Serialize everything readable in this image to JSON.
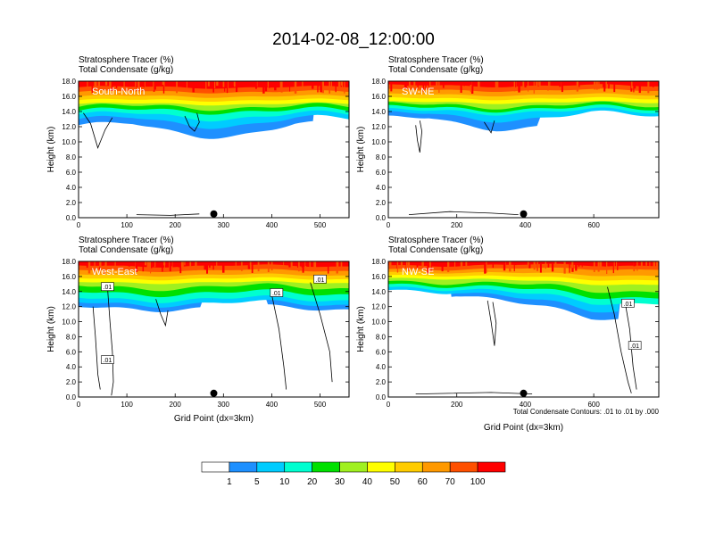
{
  "figure": {
    "title": "2014-02-08_12:00:00",
    "contour_note": "Total Condensate Contours: .01 to .01 by .000",
    "contour_label": ".01"
  },
  "colorbar": {
    "colors": [
      "#ffffff",
      "#1e90ff",
      "#00ccff",
      "#00ffd0",
      "#00e000",
      "#a0f020",
      "#ffff00",
      "#ffcc00",
      "#ff9900",
      "#ff5000",
      "#ff0000"
    ],
    "labels": [
      "1",
      "5",
      "10",
      "20",
      "30",
      "40",
      "50",
      "60",
      "70",
      "100"
    ]
  },
  "chart_data": [
    {
      "type": "contour",
      "panel_label": "South-North",
      "header_lines": [
        "Stratosphere Tracer   (%)",
        "Total Condensate   (g/kg)"
      ],
      "xlabel": "",
      "ylabel": "Height (km)",
      "xlim": [
        0,
        560
      ],
      "ylim": [
        0,
        18
      ],
      "x_ticks": [
        "0",
        "100",
        "200",
        "300",
        "400",
        "500"
      ],
      "y_ticks": [
        "0.0",
        "2.0",
        "4.0",
        "6.0",
        "8.0",
        "10.0",
        "12.0",
        "14.0",
        "16.0",
        "18.0"
      ],
      "marker_x": 280,
      "contour_labels": []
    },
    {
      "type": "contour",
      "panel_label": "SW-NE",
      "header_lines": [
        "Stratosphere Tracer   (%)",
        "Total Condensate   (g/kg)"
      ],
      "xlabel": "",
      "ylabel": "Height (km)",
      "xlim": [
        0,
        790
      ],
      "ylim": [
        0,
        18
      ],
      "x_ticks": [
        "0",
        "200",
        "400",
        "600"
      ],
      "y_ticks": [
        "0.0",
        "2.0",
        "4.0",
        "6.0",
        "8.0",
        "10.0",
        "12.0",
        "14.0",
        "16.0",
        "18.0"
      ],
      "marker_x": 395,
      "contour_labels": []
    },
    {
      "type": "contour",
      "panel_label": "West-East",
      "header_lines": [
        "Stratosphere Tracer   (%)",
        "Total Condensate   (g/kg)"
      ],
      "xlabel": "Grid Point (dx=3km)",
      "ylabel": "Height (km)",
      "xlim": [
        0,
        560
      ],
      "ylim": [
        0,
        18
      ],
      "x_ticks": [
        "0",
        "100",
        "200",
        "300",
        "400",
        "500"
      ],
      "y_ticks": [
        "0.0",
        "2.0",
        "4.0",
        "6.0",
        "8.0",
        "10.0",
        "12.0",
        "14.0",
        "16.0",
        "18.0"
      ],
      "marker_x": 280,
      "contour_labels": [
        {
          "x": 60,
          "y": 14.6
        },
        {
          "x": 410,
          "y": 13.8
        },
        {
          "x": 500,
          "y": 15.6
        },
        {
          "x": 60,
          "y": 4.9
        }
      ]
    },
    {
      "type": "contour",
      "panel_label": "NW-SE",
      "header_lines": [
        "Stratosphere Tracer   (%)",
        "Total Condensate   (g/kg)"
      ],
      "xlabel": "Grid Point (dx=3km)",
      "ylabel": "Height (km)",
      "xlim": [
        0,
        790
      ],
      "ylim": [
        0,
        18
      ],
      "x_ticks": [
        "0",
        "200",
        "400",
        "600"
      ],
      "y_ticks": [
        "0.0",
        "2.0",
        "4.0",
        "6.0",
        "8.0",
        "10.0",
        "12.0",
        "14.0",
        "16.0",
        "18.0"
      ],
      "marker_x": 395,
      "contour_labels": [
        {
          "x": 700,
          "y": 12.4
        },
        {
          "x": 720,
          "y": 6.8
        }
      ]
    }
  ]
}
